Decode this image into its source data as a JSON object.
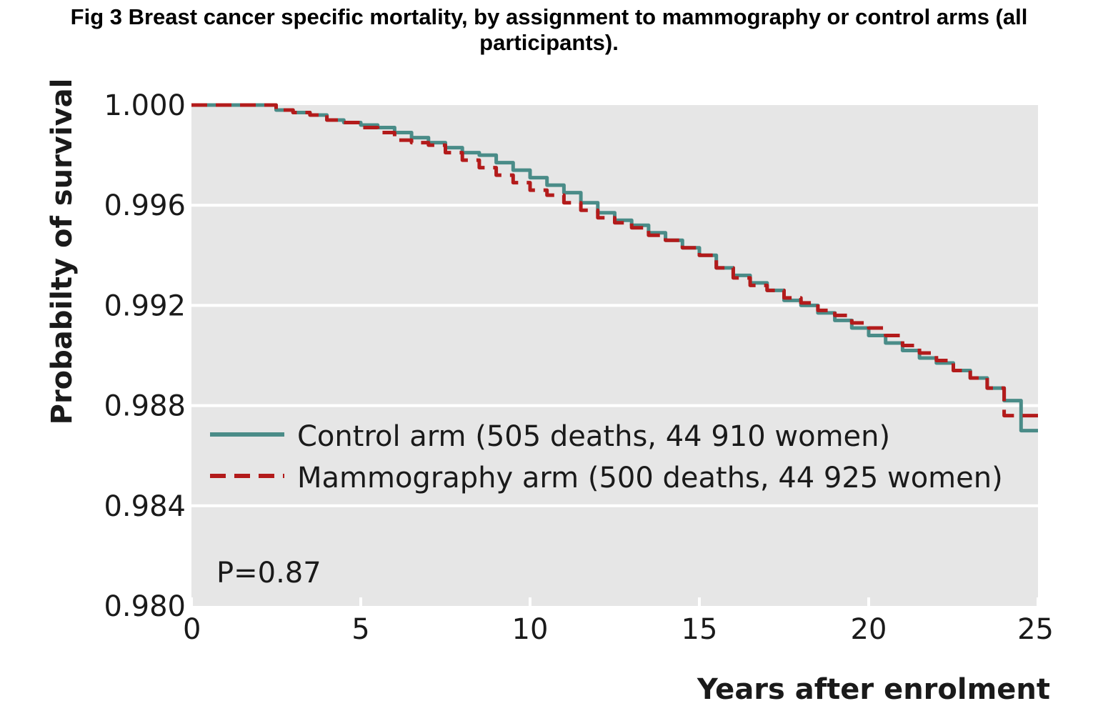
{
  "title": "Fig 3 Breast cancer specific mortality, by assignment to mammography or control arms (all participants).",
  "chart_data": {
    "type": "line",
    "xlabel": "Years after enrolment",
    "ylabel": "Probabilty of survival",
    "xlim": [
      0,
      25
    ],
    "ylim": [
      0.98,
      1.0
    ],
    "xticks": [
      "0",
      "5",
      "10",
      "15",
      "20",
      "25"
    ],
    "yticks": [
      "1.000",
      "0.996",
      "0.992",
      "0.988",
      "0.984",
      "0.980"
    ],
    "grid": "horizontal",
    "legend_position": "center-left",
    "annotation": "P=0.87",
    "colors": {
      "control": "#4a8c88",
      "mammography": "#b31b1b",
      "plot_bg": "#e6e6e6"
    },
    "series": [
      {
        "name": "Control arm (505 deaths, 44 910 women)",
        "style": "solid",
        "x": [
          0,
          1,
          1.8,
          2.5,
          3,
          3.5,
          4,
          4.5,
          5,
          5.5,
          6,
          6.5,
          7,
          7.5,
          8,
          8.5,
          9,
          9.5,
          10,
          10.5,
          11,
          11.5,
          12,
          12.5,
          13,
          13.5,
          14,
          14.5,
          15,
          15.5,
          16,
          16.5,
          17,
          17.5,
          18,
          18.5,
          19,
          19.5,
          20,
          20.5,
          21,
          21.5,
          22,
          22.5,
          23,
          23.5,
          24,
          24.5,
          25
        ],
        "values": [
          1.0,
          1.0,
          1.0,
          0.9998,
          0.9997,
          0.9996,
          0.9994,
          0.9993,
          0.9992,
          0.9991,
          0.9989,
          0.9987,
          0.9985,
          0.9983,
          0.9981,
          0.998,
          0.9977,
          0.9974,
          0.9971,
          0.9968,
          0.9965,
          0.9961,
          0.9957,
          0.9954,
          0.9952,
          0.9949,
          0.9946,
          0.9943,
          0.994,
          0.9935,
          0.9932,
          0.9929,
          0.9926,
          0.9922,
          0.992,
          0.9917,
          0.9914,
          0.9911,
          0.9908,
          0.9905,
          0.9902,
          0.9899,
          0.9897,
          0.9894,
          0.9891,
          0.9887,
          0.9882,
          0.987,
          0.987
        ]
      },
      {
        "name": "Mammography arm (500 deaths, 44 925 women)",
        "style": "dashed",
        "x": [
          0,
          1,
          1.8,
          2.5,
          3,
          3.5,
          4,
          4.5,
          5,
          5.5,
          6,
          6.5,
          7,
          7.5,
          8,
          8.5,
          9,
          9.5,
          10,
          10.5,
          11,
          11.5,
          12,
          12.5,
          13,
          13.5,
          14,
          14.5,
          15,
          15.5,
          16,
          16.5,
          17,
          17.5,
          18,
          18.5,
          19,
          19.5,
          20,
          20.5,
          21,
          21.5,
          22,
          22.5,
          23,
          23.5,
          24,
          24.5,
          25
        ],
        "values": [
          1.0,
          1.0,
          1.0,
          0.9998,
          0.9997,
          0.9996,
          0.9994,
          0.9993,
          0.9991,
          0.9989,
          0.9986,
          0.9985,
          0.9984,
          0.9981,
          0.9978,
          0.9975,
          0.9972,
          0.9969,
          0.9966,
          0.9964,
          0.9961,
          0.9958,
          0.9955,
          0.9953,
          0.9951,
          0.9948,
          0.9946,
          0.9943,
          0.994,
          0.9935,
          0.9931,
          0.9928,
          0.9926,
          0.9923,
          0.9921,
          0.9918,
          0.9916,
          0.9913,
          0.9911,
          0.9908,
          0.9904,
          0.9901,
          0.9898,
          0.9894,
          0.9891,
          0.9887,
          0.9876,
          0.9876,
          0.9876
        ]
      }
    ]
  }
}
